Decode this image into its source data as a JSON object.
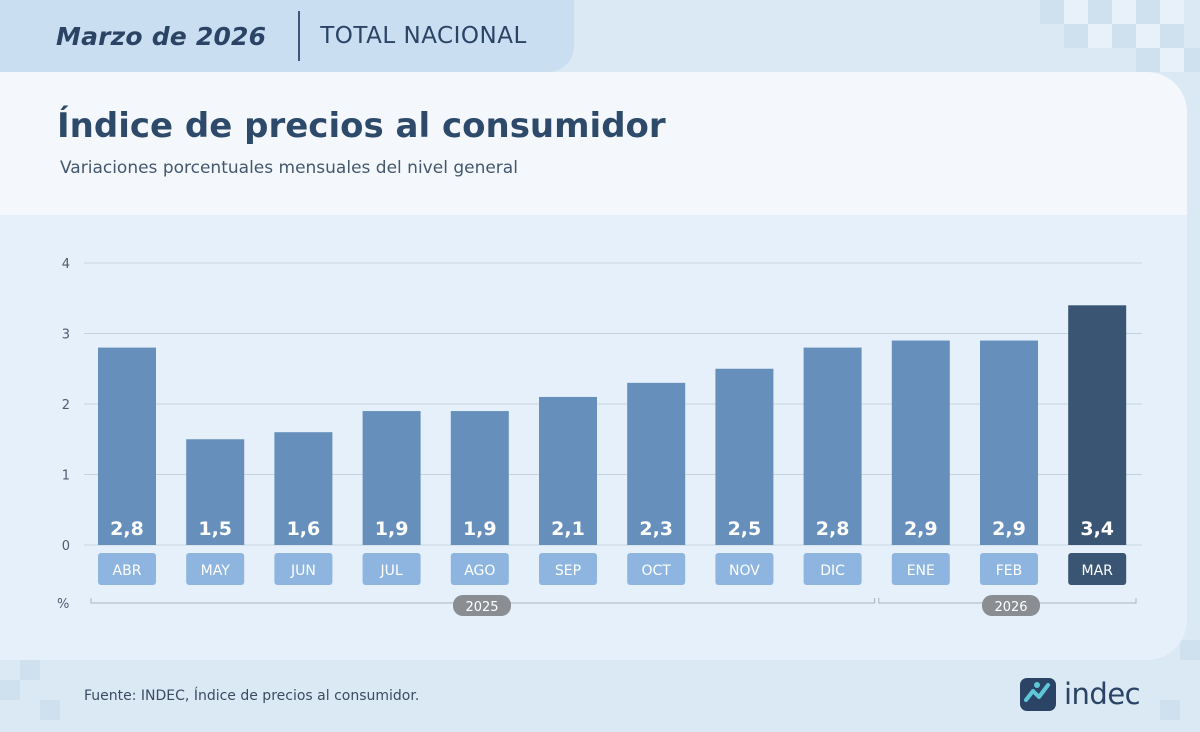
{
  "header": {
    "date_label": "Marzo de 2026",
    "scope_label": "TOTAL NACIONAL"
  },
  "footer": {
    "source": "Fuente: INDEC, Índice de precios al consumidor.",
    "logo_text": "indec"
  },
  "colors": {
    "bar": "#6690bb",
    "bar_highlight": "#3a5573",
    "month_label_bg": "#8db5e0",
    "month_label_highlight_bg": "#3a5573",
    "year_pill": "#8a8d91"
  },
  "chart_data": {
    "type": "bar",
    "title": "Índice de precios al consumidor",
    "subtitle": "Variaciones porcentuales mensuales del nivel general",
    "ylabel": "%",
    "ylim": [
      0,
      4
    ],
    "yticks": [
      "0",
      "1",
      "2",
      "3",
      "4"
    ],
    "grid": true,
    "categories": [
      "ABR",
      "MAY",
      "JUN",
      "JUL",
      "AGO",
      "SEP",
      "OCT",
      "NOV",
      "DIC",
      "ENE",
      "FEB",
      "MAR"
    ],
    "values": [
      2.8,
      1.5,
      1.6,
      1.9,
      1.9,
      2.1,
      2.3,
      2.5,
      2.8,
      2.9,
      2.9,
      3.4
    ],
    "value_labels": [
      "2,8",
      "1,5",
      "1,6",
      "1,9",
      "1,9",
      "2,1",
      "2,3",
      "2,5",
      "2,8",
      "2,9",
      "2,9",
      "3,4"
    ],
    "highlight": "MAR",
    "year_groups": [
      {
        "label": "2025",
        "from": "ABR",
        "to": "DIC"
      },
      {
        "label": "2026",
        "from": "ENE",
        "to": "MAR"
      }
    ]
  }
}
